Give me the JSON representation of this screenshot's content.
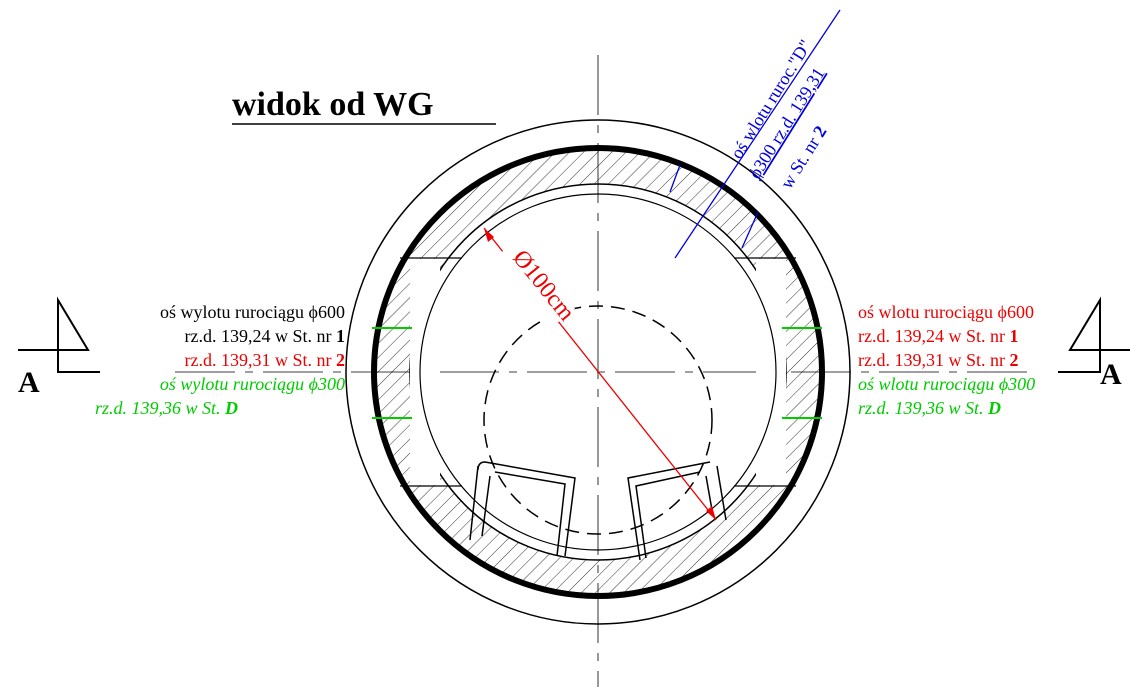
{
  "title": "widok od WG",
  "left_labels": [
    {
      "text": "oś wylotu rurociągu ϕ600"
    },
    {
      "text": "rz.d. 139,24 w St. nr",
      "bold": "1"
    },
    {
      "text": "rz.d. 139,31 w St. nr",
      "bold": "2"
    },
    {
      "text": "oś wylotu rurociągu ϕ300"
    },
    {
      "text": "rz.d. 139,36 w St.",
      "bold": "D"
    }
  ],
  "right_labels": [
    {
      "text": "oś wlotu rurociągu ϕ600"
    },
    {
      "text": "rz.d. 139,24 w St. nr",
      "bold": "1"
    },
    {
      "text": "rz.d. 139,31 w St. nr",
      "bold": "2"
    },
    {
      "text": "oś wlotu rurociągu ϕ300"
    },
    {
      "text": "rz.d. 139,36 w St.",
      "bold": "D"
    }
  ],
  "inlet_d_labels": [
    {
      "text": "oś wlotu ruroc.\"D\""
    },
    {
      "text": "ϕ300 rz.d. 139,31"
    },
    {
      "text": "w St. nr",
      "bold": "2"
    }
  ],
  "diameter_label": "Ø100cm",
  "section_marker": "A"
}
